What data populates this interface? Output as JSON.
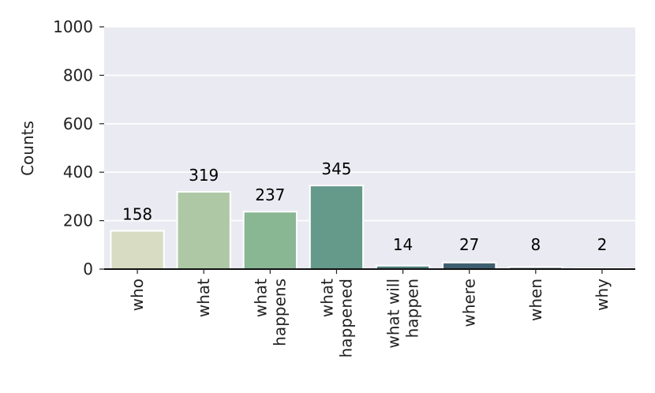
{
  "chart_data": {
    "type": "bar",
    "categories": [
      [
        "who"
      ],
      [
        "what"
      ],
      [
        "what",
        "happens"
      ],
      [
        "what",
        "happened"
      ],
      [
        "what will",
        "happen"
      ],
      [
        "where"
      ],
      [
        "when"
      ],
      [
        "why"
      ]
    ],
    "values": [
      158,
      319,
      237,
      345,
      14,
      27,
      8,
      2
    ],
    "data_labels": [
      "158",
      "319",
      "237",
      "345",
      "14",
      "27",
      "8",
      "2"
    ],
    "ylabel": "Counts",
    "xlabel": "",
    "ylim": [
      0,
      1000
    ],
    "yticks": [
      0,
      200,
      400,
      600,
      800,
      1000
    ],
    "ytick_labels": [
      "0",
      "200",
      "400",
      "600",
      "800",
      "1000"
    ],
    "grid": true,
    "bar_colors": [
      "#d7dcc2",
      "#aec8a6",
      "#89b693",
      "#65998a",
      "#4d7e7c",
      "#3f5f71",
      "#34495e",
      "#2b3a4f"
    ],
    "background_color": "#eaeaf2"
  }
}
